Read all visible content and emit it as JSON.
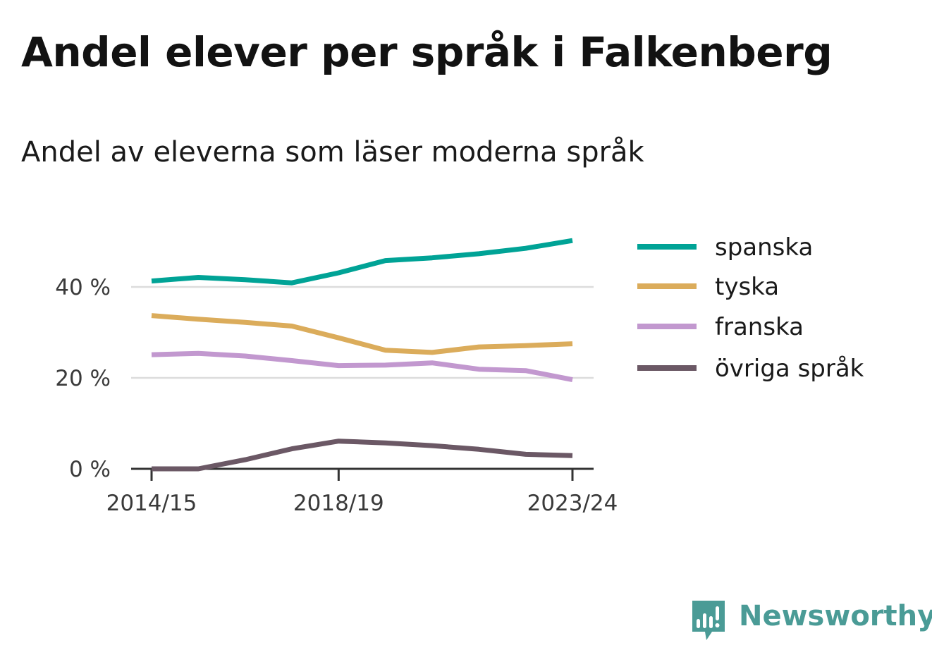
{
  "title": "Andel elever per språk i Falkenberg",
  "subtitle": "Andel av eleverna som läser moderna språk",
  "brand": {
    "name": "Newsworthy",
    "icon": "bar-chart-speech-bubble-icon",
    "color": "#4a9b96"
  },
  "chart_data": {
    "type": "line",
    "x": [
      "2014/15",
      "2015/16",
      "2016/17",
      "2017/18",
      "2018/19",
      "2019/20",
      "2020/21",
      "2021/22",
      "2022/23",
      "2023/24"
    ],
    "x_tick_labels": [
      "2014/15",
      "2018/19",
      "2023/24"
    ],
    "y_ticks": [
      0,
      20,
      40
    ],
    "y_tick_labels": [
      "0 %",
      "20 %",
      "40 %"
    ],
    "ylim": [
      0,
      50
    ],
    "grid": true,
    "legend_position": "right",
    "series": [
      {
        "name": "spanska",
        "color": "#00a396",
        "values": [
          41.3,
          42.1,
          41.6,
          40.9,
          43.1,
          45.8,
          46.4,
          47.3,
          48.5,
          50.2
        ]
      },
      {
        "name": "tyska",
        "color": "#dbac5b",
        "values": [
          33.7,
          32.9,
          32.2,
          31.4,
          28.8,
          26.1,
          25.6,
          26.8,
          27.1,
          27.5
        ]
      },
      {
        "name": "franska",
        "color": "#c298cf",
        "values": [
          25.1,
          25.4,
          24.8,
          23.8,
          22.7,
          22.8,
          23.3,
          21.9,
          21.6,
          19.6
        ]
      },
      {
        "name": "övriga språk",
        "color": "#6b5865",
        "values": [
          0.0,
          0.0,
          2.0,
          4.4,
          6.1,
          5.7,
          5.1,
          4.3,
          3.2,
          2.9
        ]
      }
    ]
  }
}
